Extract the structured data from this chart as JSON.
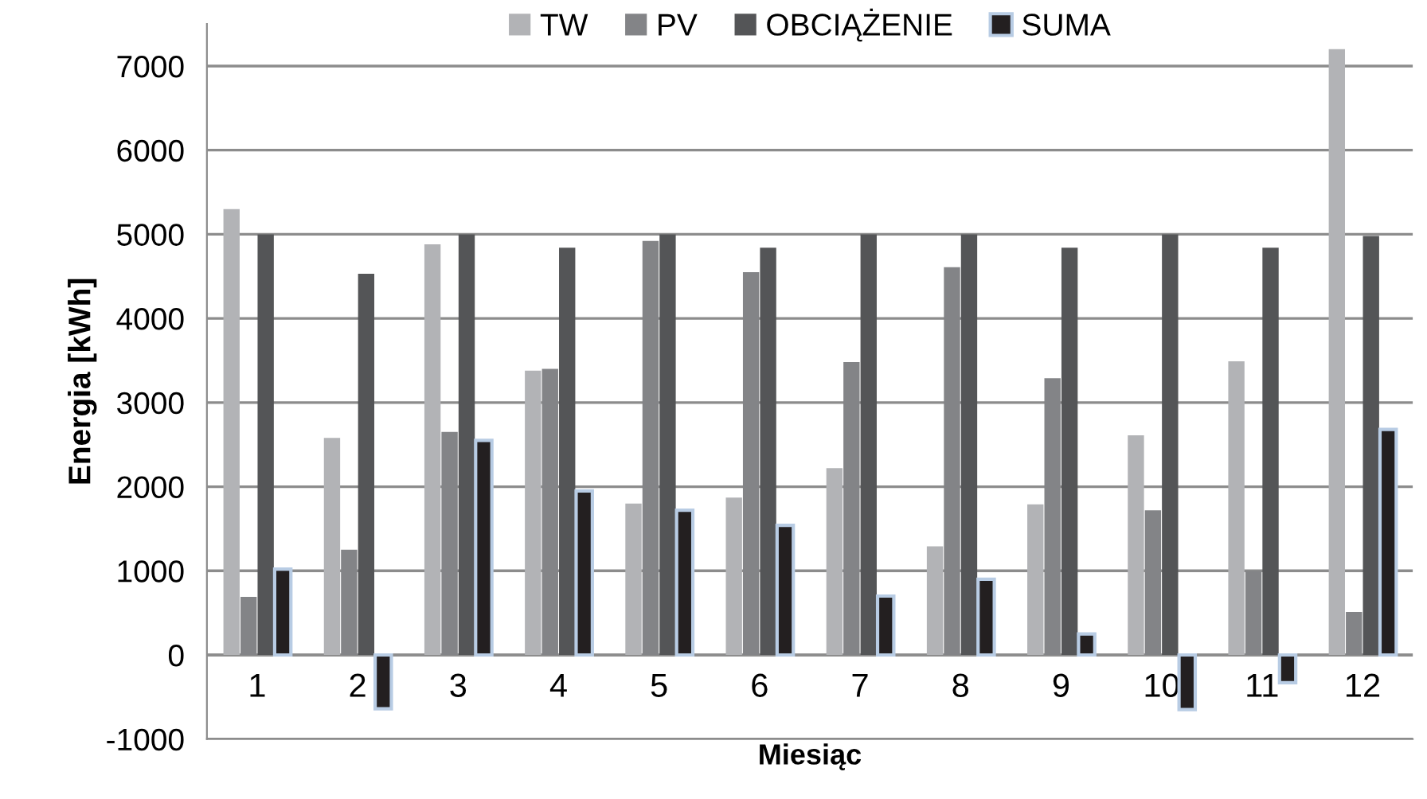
{
  "chart_data": {
    "type": "bar",
    "xlabel": "Miesiąc",
    "ylabel": "Energia [kWh]",
    "categories": [
      "1",
      "2",
      "3",
      "4",
      "5",
      "6",
      "7",
      "8",
      "9",
      "10",
      "11",
      "12"
    ],
    "series": [
      {
        "name": "TW",
        "color": "#b2b3b6",
        "values": [
          5300,
          2580,
          4880,
          3380,
          1800,
          1870,
          2220,
          1290,
          1790,
          2610,
          3490,
          7200
        ]
      },
      {
        "name": "PV",
        "color": "#838487",
        "values": [
          690,
          1250,
          2650,
          3400,
          4920,
          4550,
          3480,
          4610,
          3290,
          1720,
          1000,
          510
        ]
      },
      {
        "name": "OBCIĄŻENIE",
        "color": "#545557",
        "values": [
          5000,
          4530,
          5000,
          4840,
          5000,
          4840,
          5000,
          5000,
          4840,
          5000,
          4840,
          4980
        ]
      },
      {
        "name": "SUMA",
        "color": "#231f20",
        "values": [
          1020,
          -640,
          2550,
          1950,
          1720,
          1540,
          700,
          900,
          250,
          -650,
          -330,
          2680
        ]
      }
    ],
    "ylim": [
      -1000,
      7500
    ],
    "yticks": [
      -1000,
      0,
      1000,
      2000,
      3000,
      4000,
      5000,
      6000,
      7000
    ],
    "grid": "y",
    "legend": "top"
  }
}
